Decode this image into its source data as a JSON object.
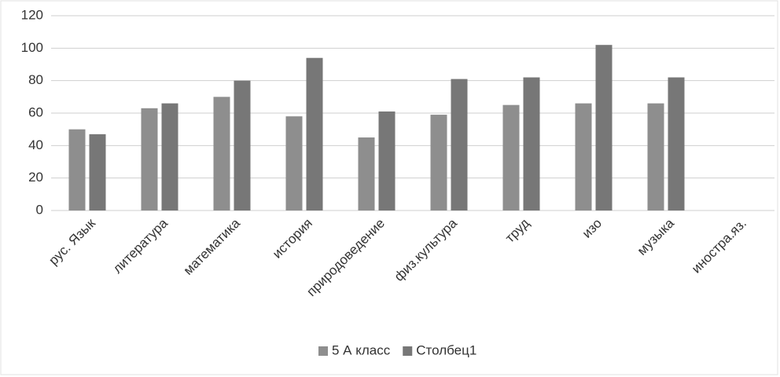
{
  "chart_data": {
    "type": "bar",
    "categories": [
      "рус. Язык",
      "литература",
      "математика",
      "история",
      "природоведение",
      "физ.культура",
      "труд",
      "изо",
      "музыка",
      "иностра.яз."
    ],
    "series": [
      {
        "name": "5 А класс",
        "color": "#8e8e8e",
        "values": [
          50,
          63,
          70,
          58,
          45,
          59,
          65,
          66,
          66,
          null
        ]
      },
      {
        "name": "Столбец1",
        "color": "#777777",
        "values": [
          47,
          66,
          80,
          94,
          61,
          81,
          82,
          102,
          82,
          null
        ]
      }
    ],
    "ylim": [
      0,
      120
    ],
    "yticks": [
      0,
      20,
      40,
      60,
      80,
      100,
      120
    ],
    "grid": true,
    "legend": "bottom"
  }
}
